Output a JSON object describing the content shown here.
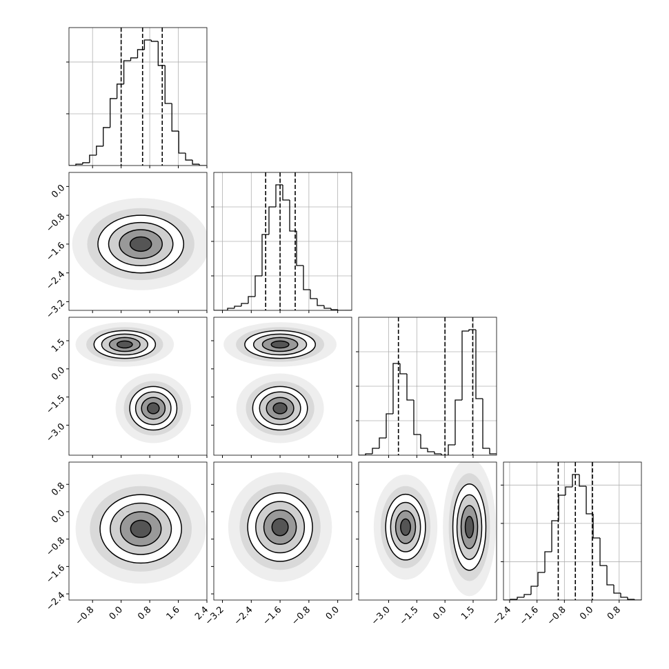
{
  "chart_data": {
    "type": "corner",
    "grid": true,
    "color": "#000000",
    "contour_levels": [
      0.5,
      1,
      1.5,
      2
    ],
    "params": [
      {
        "lim": [
          -1.46,
          2.4
        ],
        "ticks": [
          {
            "value": -0.8,
            "label": "−0.8"
          },
          {
            "value": 0,
            "label": "0.0"
          },
          0.8,
          1.6,
          2.4
        ]
      },
      {
        "lim": [
          -3.44,
          0.39
        ],
        "ticks": [
          {
            "value": -3.2,
            "label": "−3.2"
          },
          {
            "value": -2.4,
            "label": "−2.4"
          },
          {
            "value": -1.6,
            "label": "−1.6"
          },
          {
            "value": -0.8,
            "label": "−0.8"
          },
          {
            "value": 0,
            "label": "0.0"
          }
        ]
      },
      {
        "lim": [
          -4.6,
          2.75
        ],
        "ticks": [
          {
            "value": -3.0,
            "label": "−3.0"
          },
          {
            "value": -1.5,
            "label": "−1.5"
          },
          {
            "value": 0,
            "label": "0.0"
          },
          1.5
        ]
      },
      {
        "lim": [
          -2.58,
          1.45
        ],
        "ticks": [
          {
            "value": -2.4,
            "label": "−2.4"
          },
          {
            "value": -1.6,
            "label": "−1.6"
          },
          {
            "value": -0.8,
            "label": "−0.8"
          },
          {
            "value": 0,
            "label": "0.0"
          },
          0.8
        ]
      }
    ],
    "histograms": [
      {
        "bins": [
          -1.46,
          -1.268,
          -1.076,
          -0.884,
          -0.692,
          -0.5,
          -0.308,
          -0.116,
          0.076,
          0.268,
          0.46,
          0.652,
          0.844,
          1.036,
          1.228,
          1.42,
          1.612,
          1.804,
          1.996,
          2.188,
          2.38
        ],
        "counts": [
          0,
          13,
          27,
          100,
          187,
          367,
          647,
          787,
          1013,
          1040,
          1120,
          1213,
          1200,
          967,
          600,
          333,
          120,
          53,
          13,
          0
        ],
        "quantiles": [
          0.0,
          0.6,
          1.15
        ],
        "ylim": [
          0,
          1333
        ],
        "yticks": [
          500,
          1000
        ]
      },
      {
        "bins": [
          -3.44,
          -3.2485,
          -3.057,
          -2.8655,
          -2.674,
          -2.4825,
          -2.291,
          -2.0995,
          -1.908,
          -1.7165,
          -1.525,
          -1.3335,
          -1.142,
          -0.9505,
          -0.759,
          -0.5675,
          -0.376,
          -0.1845,
          0.007,
          0.1985,
          0.39
        ],
        "counts": [
          0,
          0,
          30,
          60,
          100,
          200,
          500,
          1100,
          1500,
          1820,
          1600,
          1150,
          650,
          300,
          170,
          70,
          30,
          10,
          0,
          0
        ],
        "quantiles": [
          -2.0,
          -1.6,
          -1.18
        ],
        "ylim": [
          0,
          2000
        ],
        "yticks": [
          500,
          1000,
          1500
        ]
      },
      {
        "bins": [
          -4.6,
          -4.2325,
          -3.865,
          -3.4975,
          -3.13,
          -2.7625,
          -2.395,
          -2.0275,
          -1.66,
          -1.2925,
          -0.925,
          -0.5575,
          -0.19,
          0.1775,
          0.545,
          0.9125,
          1.28,
          1.6475,
          2.015,
          2.3825,
          2.75
        ],
        "counts": [
          0,
          20,
          100,
          250,
          600,
          1330,
          1180,
          800,
          300,
          100,
          50,
          20,
          0,
          150,
          800,
          1800,
          1820,
          820,
          100,
          20
        ],
        "quantiles": [
          -2.48,
          0.0,
          1.48
        ],
        "ylim": [
          0,
          2000
        ],
        "yticks": [
          500,
          1000,
          1500
        ]
      },
      {
        "bins": [
          -2.58,
          -2.3785,
          -2.177,
          -1.9755,
          -1.774,
          -1.5725,
          -1.371,
          -1.1695,
          -0.968,
          -0.7665,
          -0.565,
          -0.3635,
          -0.162,
          0.0395,
          0.241,
          0.4425,
          0.644,
          0.8455,
          1.047,
          1.2485,
          1.45
        ],
        "counts": [
          0,
          9,
          36,
          72,
          180,
          360,
          630,
          1035,
          1368,
          1476,
          1638,
          1485,
          1125,
          810,
          450,
          198,
          90,
          36,
          9,
          0
        ],
        "quantiles": [
          -0.98,
          -0.48,
          0.02
        ],
        "ylim": [
          0,
          1800
        ],
        "yticks": [
          500,
          1000,
          1500
        ]
      }
    ],
    "pairs": [
      {
        "x": 0,
        "y": 1,
        "blobs": [
          {
            "center": [
              0.55,
              -1.6
            ],
            "sigma": [
              0.6,
              0.4
            ]
          }
        ]
      },
      {
        "x": 0,
        "y": 2,
        "blobs": [
          {
            "center": [
              0.1,
              1.3
            ],
            "sigma": [
              0.43,
              0.37
            ]
          },
          {
            "center": [
              0.9,
              -2.1
            ],
            "sigma": [
              0.33,
              0.58
            ]
          }
        ]
      },
      {
        "x": 1,
        "y": 2,
        "blobs": [
          {
            "center": [
              -1.6,
              1.3
            ],
            "sigma": [
              0.49,
              0.37
            ]
          },
          {
            "center": [
              -1.6,
              -2.1
            ],
            "sigma": [
              0.38,
              0.58
            ]
          }
        ]
      },
      {
        "x": 0,
        "y": 3,
        "blobs": [
          {
            "center": [
              0.55,
              -0.5
            ],
            "sigma": [
              0.57,
              0.5
            ]
          }
        ]
      },
      {
        "x": 1,
        "y": 3,
        "blobs": [
          {
            "center": [
              -1.6,
              -0.45
            ],
            "sigma": [
              0.45,
              0.5
            ]
          }
        ]
      },
      {
        "x": 2,
        "y": 3,
        "blobs": [
          {
            "center": [
              -2.1,
              -0.45
            ],
            "sigma": [
              0.53,
              0.48
            ]
          },
          {
            "center": [
              1.3,
              -0.45
            ],
            "sigma": [
              0.44,
              0.63
            ]
          }
        ]
      }
    ]
  }
}
